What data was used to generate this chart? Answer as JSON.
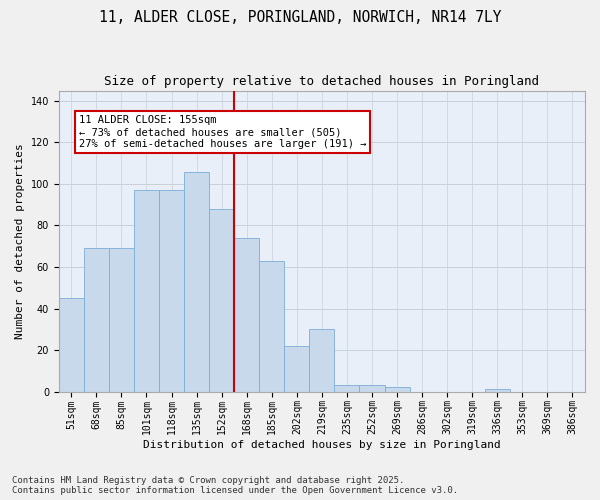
{
  "title1": "11, ALDER CLOSE, PORINGLAND, NORWICH, NR14 7LY",
  "title2": "Size of property relative to detached houses in Poringland",
  "xlabel": "Distribution of detached houses by size in Poringland",
  "ylabel": "Number of detached properties",
  "categories": [
    "51sqm",
    "68sqm",
    "85sqm",
    "101sqm",
    "118sqm",
    "135sqm",
    "152sqm",
    "168sqm",
    "185sqm",
    "202sqm",
    "219sqm",
    "235sqm",
    "252sqm",
    "269sqm",
    "286sqm",
    "302sqm",
    "319sqm",
    "336sqm",
    "353sqm",
    "369sqm",
    "386sqm"
  ],
  "bar_heights": [
    45,
    69,
    69,
    97,
    97,
    106,
    88,
    74,
    63,
    22,
    30,
    3,
    3,
    2,
    0,
    0,
    0,
    1,
    0,
    0,
    0
  ],
  "bar_color": "#c8d9eb",
  "bar_edge_color": "#7aaed6",
  "grid_color": "#c8d0da",
  "bg_color": "#e8eff8",
  "red_line_x": 6.5,
  "red_line_color": "#cc0000",
  "annotation_title": "11 ALDER CLOSE: 155sqm",
  "annotation_line1": "← 73% of detached houses are smaller (505)",
  "annotation_line2": "27% of semi-detached houses are larger (191) →",
  "annotation_box_color": "#ffffff",
  "annotation_box_edge": "#cc0000",
  "ylim": [
    0,
    145
  ],
  "yticks": [
    0,
    20,
    40,
    60,
    80,
    100,
    120,
    140
  ],
  "footer": "Contains HM Land Registry data © Crown copyright and database right 2025.\nContains public sector information licensed under the Open Government Licence v3.0.",
  "title_fontsize": 10.5,
  "subtitle_fontsize": 9,
  "axis_label_fontsize": 8,
  "tick_fontsize": 7,
  "annotation_fontsize": 7.5,
  "footer_fontsize": 6.5
}
